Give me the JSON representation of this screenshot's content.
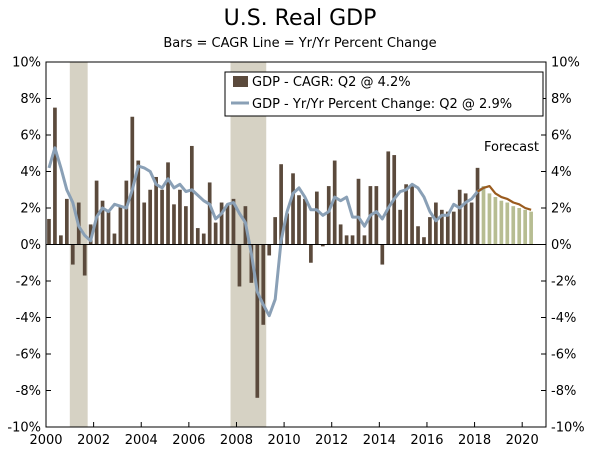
{
  "chart_data": {
    "type": "bar",
    "title": "U.S. Real GDP",
    "subtitle": "Bars = CAGR     Line = Yr/Yr Percent Change",
    "ylim": [
      -10,
      10
    ],
    "y_ticks": [
      "-10%",
      "-8%",
      "-6%",
      "-4%",
      "-2%",
      "0%",
      "2%",
      "4%",
      "6%",
      "8%",
      "10%"
    ],
    "x_ticks": [
      "2000",
      "2002",
      "2004",
      "2006",
      "2008",
      "2010",
      "2012",
      "2014",
      "2016",
      "2018",
      "2020"
    ],
    "x_start": 2000,
    "grid": false,
    "legend": {
      "placement": "top-right",
      "entries": [
        "GDP - CAGR: Q2 @ 4.2%",
        "GDP - Yr/Yr Percent Change: Q2 @ 2.9%"
      ]
    },
    "annotation": "Forecast",
    "recessions": [
      [
        2001.0,
        2001.75
      ],
      [
        2007.75,
        2009.25
      ]
    ],
    "colors": {
      "actual_bar": "#5b4a3c",
      "forecast_bar": "#b7bd92",
      "line": "#8aa0b6",
      "forecast_line": "#9a5b1e",
      "recession": "#d6d2c4"
    },
    "series": [
      {
        "name": "GDP - CAGR",
        "values": [
          1.4,
          7.5,
          0.5,
          2.5,
          -1.1,
          2.3,
          -1.7,
          1.1,
          3.5,
          2.4,
          1.8,
          0.6,
          2.1,
          3.5,
          7.0,
          4.6,
          2.3,
          3.0,
          3.7,
          3.0,
          4.5,
          2.2,
          3.0,
          2.1,
          5.4,
          0.9,
          0.6,
          3.4,
          1.2,
          2.3,
          2.2,
          2.5,
          -2.3,
          2.1,
          -2.1,
          -8.4,
          -4.4,
          -0.6,
          1.5,
          4.4,
          1.7,
          3.9,
          2.7,
          2.5,
          -1.0,
          2.9,
          -0.1,
          3.2,
          4.6,
          1.1,
          0.5,
          0.5,
          3.6,
          0.5,
          3.2,
          3.2,
          -1.1,
          5.1,
          4.9,
          1.9,
          3.3,
          3.3,
          1.0,
          0.4,
          1.5,
          2.3,
          1.9,
          1.8,
          1.8,
          3.0,
          2.8,
          2.3,
          4.2,
          3.2,
          2.8,
          2.6,
          2.4,
          2.3,
          2.1,
          2.0,
          1.9,
          1.8
        ]
      },
      {
        "name": "GDP - Yr/Yr Percent Change",
        "values": [
          4.2,
          5.3,
          4.2,
          3.0,
          2.3,
          1.0,
          0.5,
          0.2,
          1.5,
          2.0,
          1.8,
          2.2,
          2.1,
          2.0,
          3.0,
          4.3,
          4.2,
          4.0,
          3.3,
          3.1,
          3.6,
          3.1,
          3.3,
          2.9,
          3.0,
          2.7,
          2.4,
          2.2,
          1.4,
          1.7,
          2.2,
          2.3,
          1.7,
          1.2,
          -0.5,
          -2.6,
          -3.3,
          -3.9,
          -3.0,
          0.2,
          1.8,
          2.8,
          3.1,
          2.6,
          1.9,
          1.9,
          1.6,
          1.8,
          2.6,
          2.4,
          2.6,
          1.5,
          1.5,
          1.0,
          1.6,
          1.8,
          1.4,
          2.0,
          2.5,
          2.9,
          3.0,
          3.3,
          3.1,
          2.6,
          1.8,
          1.3,
          1.6,
          1.6,
          2.2,
          2.0,
          2.3,
          2.5,
          2.9,
          3.1,
          3.2,
          2.8,
          2.6,
          2.5,
          2.3,
          2.2,
          2.0,
          1.9
        ]
      }
    ],
    "forecast_start_index": 73
  }
}
